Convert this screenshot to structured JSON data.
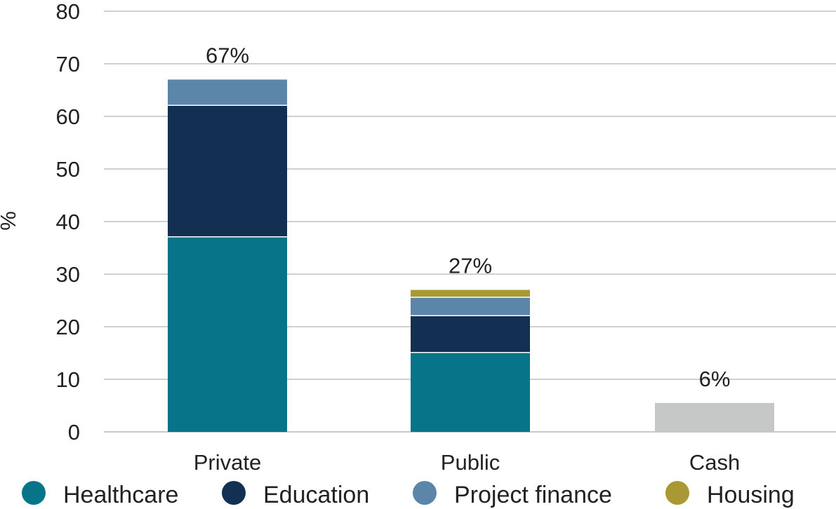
{
  "chart_data": {
    "type": "bar",
    "stacked": true,
    "ylabel": "%",
    "ylim": [
      0,
      80
    ],
    "yticks": [
      0,
      10,
      20,
      30,
      40,
      50,
      60,
      70,
      80
    ],
    "categories": [
      "Private",
      "Public",
      "Cash"
    ],
    "totals": [
      "67%",
      "27%",
      "6%"
    ],
    "series": [
      {
        "name": "Healthcare",
        "color": "#08748A",
        "values": [
          37,
          15,
          0
        ]
      },
      {
        "name": "Education",
        "color": "#132F52",
        "values": [
          25,
          7,
          0
        ]
      },
      {
        "name": "Project finance",
        "color": "#5B86AA",
        "values": [
          5,
          3.5,
          0
        ]
      },
      {
        "name": "Housing",
        "color": "#A89934",
        "values": [
          0,
          1.5,
          0
        ]
      },
      {
        "name": "",
        "color": "#C6C8C8",
        "values": [
          0,
          0,
          5.5
        ]
      }
    ],
    "legend": [
      {
        "name": "Healthcare",
        "color": "#08748A"
      },
      {
        "name": "Education",
        "color": "#132F52"
      },
      {
        "name": "Project finance",
        "color": "#5B86AA"
      },
      {
        "name": "Housing",
        "color": "#A89934"
      }
    ],
    "legend_position": "bottom",
    "grid": true
  }
}
